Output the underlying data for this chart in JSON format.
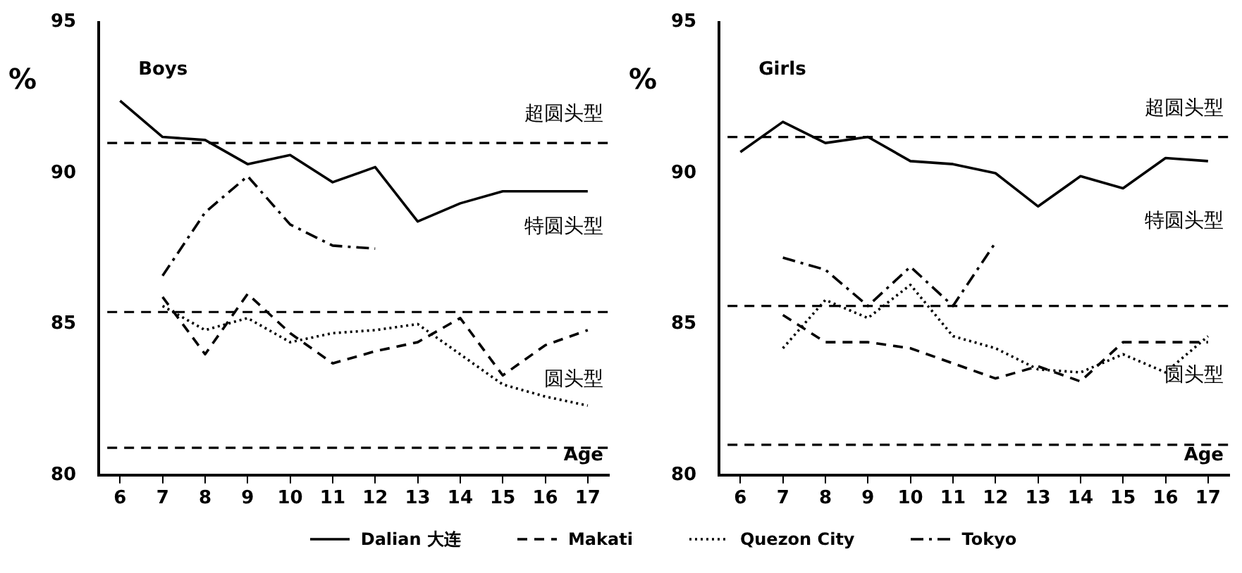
{
  "chart_data": [
    {
      "type": "line",
      "title": "Boys",
      "xlabel": "Age",
      "ylabel": "%",
      "categories": [
        "6",
        "7",
        "8",
        "9",
        "10",
        "11",
        "12",
        "13",
        "14",
        "15",
        "16",
        "17"
      ],
      "ylim": [
        80,
        95
      ],
      "yticks": [
        80,
        85,
        90,
        95
      ],
      "legend": "bottom",
      "marker": "none",
      "series": [
        {
          "name": "Dalian 大连",
          "color": "#000000",
          "line_style": "solid",
          "values": [
            92.4,
            91.2,
            91.1,
            90.3,
            90.6,
            89.7,
            90.2,
            88.4,
            89.0,
            89.4,
            89.4,
            89.4
          ]
        },
        {
          "name": "Makati",
          "color": "#000000",
          "line_style": "dashed",
          "values": [
            null,
            85.9,
            84.0,
            86.0,
            84.7,
            83.7,
            84.1,
            84.4,
            85.2,
            83.3,
            84.3,
            84.8
          ]
        },
        {
          "name": "Quezon City",
          "color": "#000000",
          "line_style": "dotted",
          "values": [
            null,
            85.6,
            84.8,
            85.2,
            84.4,
            84.7,
            84.8,
            85.0,
            84.0,
            83.0,
            82.6,
            82.3
          ]
        },
        {
          "name": "Tokyo",
          "color": "#000000",
          "line_style": "dashdot",
          "values": [
            null,
            86.6,
            88.7,
            89.9,
            88.3,
            87.6,
            87.5,
            null,
            null,
            null,
            null,
            null
          ]
        }
      ],
      "ref_lines": [
        {
          "axis": "y",
          "value": 91.0,
          "line_style": "dashed"
        },
        {
          "axis": "y",
          "value": 85.4,
          "line_style": "dashed"
        },
        {
          "axis": "y",
          "value": 80.9,
          "line_style": "dashed"
        }
      ],
      "annotations": [
        "超圆头型",
        "特圆头型",
        "圆头型"
      ]
    },
    {
      "type": "line",
      "title": "Girls",
      "xlabel": "Age",
      "ylabel": "%",
      "categories": [
        "6",
        "7",
        "8",
        "9",
        "10",
        "11",
        "12",
        "13",
        "14",
        "15",
        "16",
        "17"
      ],
      "ylim": [
        80,
        95
      ],
      "yticks": [
        80,
        85,
        90,
        95
      ],
      "legend": "bottom",
      "marker": "none",
      "series": [
        {
          "name": "Dalian 大连",
          "color": "#000000",
          "line_style": "solid",
          "values": [
            90.7,
            91.7,
            91.0,
            91.2,
            90.4,
            90.3,
            90.0,
            88.9,
            89.9,
            89.5,
            90.5,
            90.4
          ]
        },
        {
          "name": "Makati",
          "color": "#000000",
          "line_style": "dashed",
          "values": [
            null,
            85.3,
            84.4,
            84.4,
            84.2,
            83.7,
            83.2,
            83.6,
            83.1,
            84.4,
            84.4,
            84.4
          ]
        },
        {
          "name": "Quezon City",
          "color": "#000000",
          "line_style": "dotted",
          "values": [
            null,
            84.2,
            85.8,
            85.2,
            86.3,
            84.6,
            84.2,
            83.5,
            83.4,
            84.0,
            83.4,
            84.6
          ]
        },
        {
          "name": "Tokyo",
          "color": "#000000",
          "line_style": "dashdot",
          "values": [
            null,
            87.2,
            86.8,
            85.6,
            86.9,
            85.6,
            87.7,
            null,
            null,
            null,
            null,
            null
          ]
        }
      ],
      "ref_lines": [
        {
          "axis": "y",
          "value": 91.2,
          "line_style": "dashed"
        },
        {
          "axis": "y",
          "value": 85.6,
          "line_style": "dashed"
        },
        {
          "axis": "y",
          "value": 81.0,
          "line_style": "dashed"
        }
      ],
      "annotations": [
        "超圆头型",
        "特圆头型",
        "圆头型"
      ]
    }
  ]
}
